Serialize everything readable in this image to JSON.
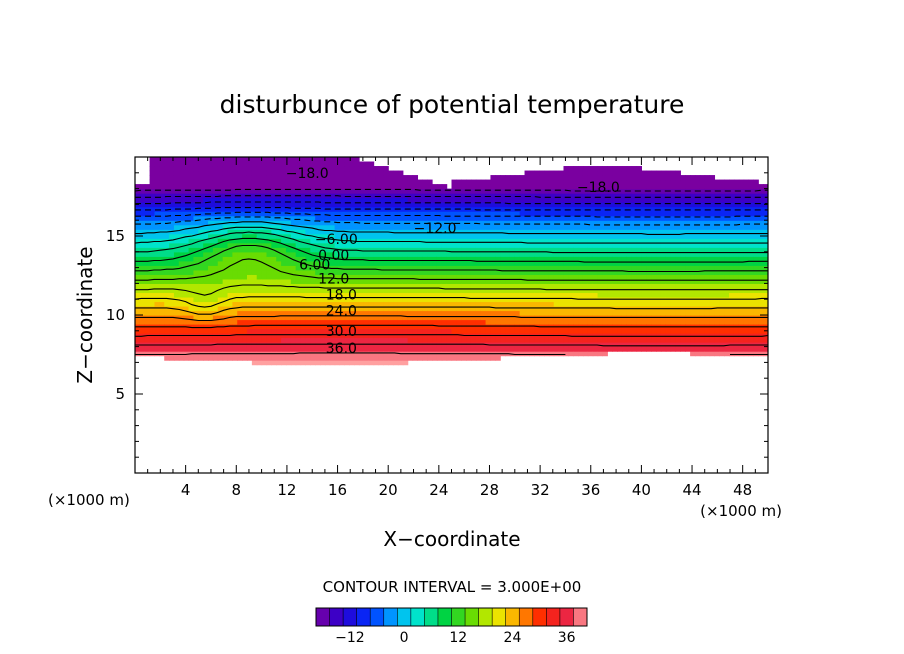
{
  "chart_data": {
    "type": "heatmap",
    "title": "disturbunce of potential temperature",
    "xlabel": "X−coordinate",
    "ylabel": "Z−coordinate",
    "x_unit_label": "(×1000 m)",
    "y_unit_label": "(×1000 m)",
    "xlim": [
      0,
      50
    ],
    "ylim": [
      0,
      20
    ],
    "x_ticks": [
      {
        "value": 4,
        "label": "4"
      },
      {
        "value": 8,
        "label": "8"
      },
      {
        "value": 12,
        "label": "12"
      },
      {
        "value": 16,
        "label": "16"
      },
      {
        "value": 20,
        "label": "20"
      },
      {
        "value": 24,
        "label": "24"
      },
      {
        "value": 28,
        "label": "28"
      },
      {
        "value": 32,
        "label": "32"
      },
      {
        "value": 36,
        "label": "36"
      },
      {
        "value": 40,
        "label": "40"
      },
      {
        "value": 44,
        "label": "44"
      },
      {
        "value": 48,
        "label": "48"
      }
    ],
    "y_ticks": [
      {
        "value": 5,
        "label": "5"
      },
      {
        "value": 10,
        "label": "10"
      },
      {
        "value": 15,
        "label": "15"
      }
    ],
    "contour_interval_text": "CONTOUR INTERVAL = 3.000E+00",
    "contour_interval": 3,
    "contour_levels": [
      -18,
      -15,
      -12,
      -9,
      -6,
      -3,
      0,
      3,
      6,
      9,
      12,
      15,
      18,
      21,
      24,
      27,
      30,
      33,
      36,
      39
    ],
    "contour_labels": [
      {
        "text": "−18.0",
        "x": 13.6,
        "z": 19.0
      },
      {
        "text": "−18.0",
        "x": 36.6,
        "z": 18.1
      },
      {
        "text": "−12.0",
        "x": 23.7,
        "z": 15.5
      },
      {
        "text": "−6.00",
        "x": 15.9,
        "z": 14.8
      },
      {
        "text": "0.00",
        "x": 15.7,
        "z": 13.8
      },
      {
        "text": "6.00",
        "x": 14.2,
        "z": 13.2
      },
      {
        "text": "12.0",
        "x": 15.7,
        "z": 12.3
      },
      {
        "text": "18.0",
        "x": 16.3,
        "z": 11.3
      },
      {
        "text": "24.0",
        "x": 16.3,
        "z": 10.3
      },
      {
        "text": "30.0",
        "x": 16.3,
        "z": 9.0
      },
      {
        "text": "36.0",
        "x": 16.3,
        "z": 7.9
      }
    ],
    "field_description": "Horizontally stratified field: about +39 near z=7.5 km decreasing upward to about -19 near z=18 km; white (undefined) below about 7.3 km and above the top contour; a distorted, overturning region near x=4-14 km.",
    "colorbar": {
      "min": -19.5,
      "max": 40.5,
      "ticks": [
        {
          "value": -12,
          "label": "−12"
        },
        {
          "value": 0,
          "label": "0"
        },
        {
          "value": 12,
          "label": "12"
        },
        {
          "value": 24,
          "label": "24"
        },
        {
          "value": 36,
          "label": "36"
        }
      ]
    },
    "grid": false,
    "legend": "colorbar bottom-center"
  }
}
